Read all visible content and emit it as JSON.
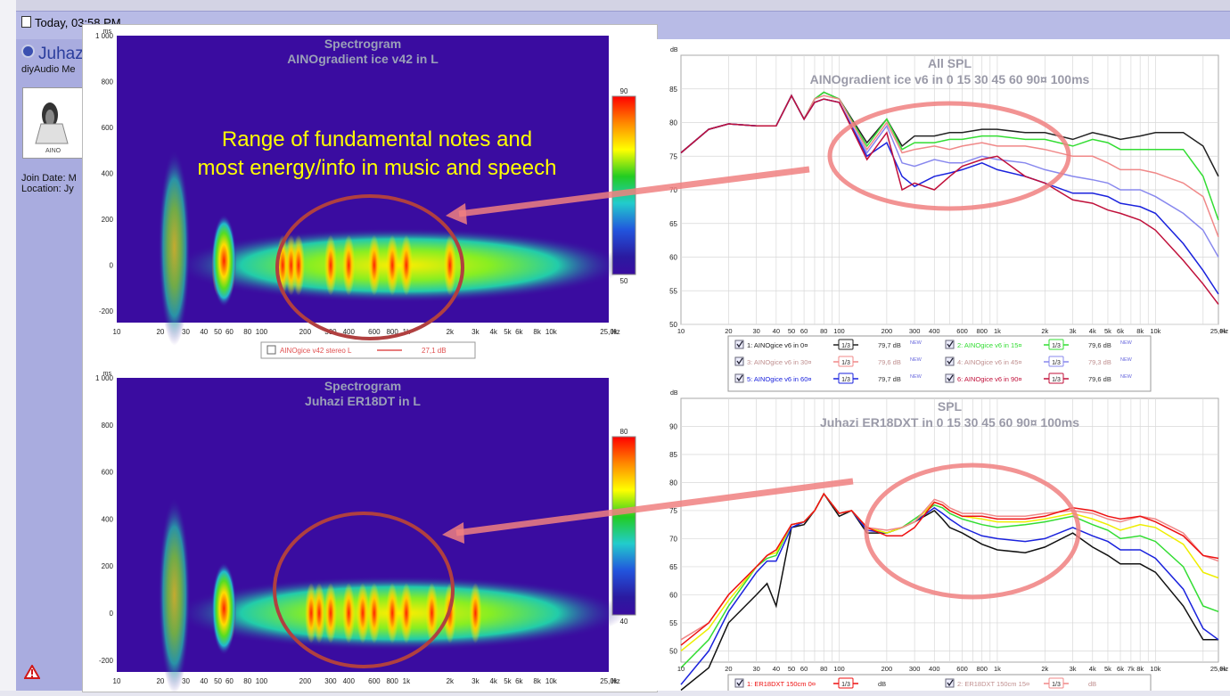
{
  "forum": {
    "post_date": "Today, 03:58 PM",
    "username": "Juhaz",
    "user_title": "diyAudio Me",
    "join_date": "Join Date: M",
    "location": "Location: Jy",
    "avatar_text": "AINO"
  },
  "colors": {
    "spectro_bg": "#3a0ca0",
    "annotation_text": "#ffff00",
    "annotation_arrow": "#f08080",
    "circle": "#b04040"
  },
  "annotation": {
    "line1": "Range of fundamental notes and",
    "line2": "most energy/info in music and speech"
  },
  "chart_data": [
    {
      "type": "heatmap",
      "title": "Spectrogram",
      "subtitle": "AINOgradient ice v42 in L",
      "xlabel": "Hz",
      "ylabel": "ms",
      "x_scale": "log",
      "xlim": [
        10,
        25000
      ],
      "ylim": [
        -250,
        1000
      ],
      "x_ticks": [
        "10",
        "20",
        "30",
        "40",
        "50",
        "60",
        "80",
        "100",
        "200",
        "300",
        "400",
        "600",
        "800",
        "1k",
        "2k",
        "3k",
        "4k",
        "5k",
        "6k",
        "8k",
        "10k",
        "25,0k"
      ],
      "x_tick_values": [
        10,
        20,
        30,
        40,
        50,
        60,
        80,
        100,
        200,
        300,
        400,
        600,
        800,
        1000,
        2000,
        3000,
        4000,
        5000,
        6000,
        8000,
        10000,
        25000
      ],
      "y_ticks": [
        "1 000",
        "800",
        "600",
        "400",
        "200",
        "0",
        "-200"
      ],
      "y_tick_values": [
        1000,
        800,
        600,
        400,
        200,
        0,
        -200
      ],
      "colorbar": {
        "max": "90",
        "min": "50"
      },
      "hot_spots_hz": [
        50,
        60,
        140,
        160,
        180,
        300,
        400,
        600,
        800,
        1000,
        2000
      ],
      "legend": {
        "label": "AINOgice v42 stereo L",
        "value": "27,1 dB"
      }
    },
    {
      "type": "heatmap",
      "title": "Spectrogram",
      "subtitle": "Juhazi ER18DT in L",
      "xlabel": "Hz",
      "ylabel": "ms",
      "x_scale": "log",
      "xlim": [
        10,
        25000
      ],
      "ylim": [
        -250,
        1000
      ],
      "x_ticks": [
        "10",
        "20",
        "30",
        "40",
        "50",
        "60",
        "80",
        "100",
        "200",
        "300",
        "400",
        "600",
        "800",
        "1k",
        "2k",
        "3k",
        "4k",
        "5k",
        "6k",
        "8k",
        "10k",
        "25,0k"
      ],
      "x_tick_values": [
        10,
        20,
        30,
        40,
        50,
        60,
        80,
        100,
        200,
        300,
        400,
        600,
        800,
        1000,
        2000,
        3000,
        4000,
        5000,
        6000,
        8000,
        10000,
        25000
      ],
      "y_ticks": [
        "1 000",
        "800",
        "600",
        "400",
        "200",
        "0",
        "-200"
      ],
      "y_tick_values": [
        1000,
        800,
        600,
        400,
        200,
        0,
        -200
      ],
      "colorbar": {
        "max": "80",
        "min": "40"
      },
      "hot_spots_hz": [
        55,
        60,
        220,
        250,
        300,
        400,
        500,
        600,
        800,
        1000,
        1500,
        2000,
        3000
      ]
    },
    {
      "type": "line",
      "title": "All SPL",
      "subtitle": "AINOgradient ice v6 in 0 15 30 45 60 90¤ 100ms",
      "ylabel": "dB",
      "xlabel": "Hz",
      "x_scale": "log",
      "xlim": [
        10,
        25000
      ],
      "ylim": [
        50,
        90
      ],
      "x_ticks": [
        "10",
        "20",
        "30",
        "40",
        "50",
        "60",
        "80",
        "100",
        "200",
        "300",
        "400",
        "600",
        "800",
        "1k",
        "2k",
        "3k",
        "4k",
        "5k",
        "6k",
        "8k",
        "10k",
        "25,0k"
      ],
      "x_tick_values": [
        10,
        20,
        30,
        40,
        50,
        60,
        80,
        100,
        200,
        300,
        400,
        600,
        800,
        1000,
        2000,
        3000,
        4000,
        5000,
        6000,
        8000,
        10000,
        25000
      ],
      "y_ticks": [
        "50",
        "55",
        "60",
        "65",
        "70",
        "75",
        "80",
        "85"
      ],
      "y_tick_values": [
        50,
        55,
        60,
        65,
        70,
        75,
        80,
        85
      ],
      "x": [
        10,
        15,
        20,
        30,
        40,
        50,
        60,
        70,
        80,
        100,
        150,
        200,
        250,
        300,
        400,
        500,
        600,
        800,
        1000,
        1500,
        2000,
        3000,
        4000,
        5000,
        6000,
        8000,
        10000,
        15000,
        20000,
        25000
      ],
      "series": [
        {
          "color": "#222222",
          "values": [
            75.5,
            79,
            79.8,
            79.5,
            79.5,
            84,
            80.5,
            83.5,
            84.5,
            83.5,
            77,
            80.5,
            76.5,
            78,
            78,
            78.5,
            78.5,
            79,
            79,
            78.5,
            78.5,
            77.5,
            78.5,
            78,
            77.5,
            78,
            78.5,
            78.5,
            76.5,
            72
          ]
        },
        {
          "color": "#33dd33",
          "values": [
            75.5,
            79,
            79.8,
            79.5,
            79.5,
            84,
            80.5,
            83.5,
            84.5,
            83.5,
            76.5,
            80.5,
            76,
            77,
            77,
            77.5,
            77.5,
            78,
            78,
            77.5,
            77.5,
            76.5,
            77.5,
            77,
            76,
            76,
            76,
            76,
            72,
            65.5
          ]
        },
        {
          "color": "#f08888",
          "values": [
            75.5,
            79,
            79.8,
            79.5,
            79.5,
            84,
            80.5,
            83.5,
            84,
            83.5,
            76,
            80,
            75.5,
            76,
            76.5,
            76,
            76.5,
            77,
            76.5,
            76.5,
            76,
            75,
            75,
            74,
            73,
            73,
            72.5,
            71,
            69,
            63
          ]
        },
        {
          "color": "#8888ee",
          "values": [
            75.5,
            79,
            79.8,
            79.5,
            79.5,
            84,
            80.5,
            83,
            83.5,
            83,
            75.5,
            79.5,
            74,
            73.5,
            74.5,
            74,
            74,
            75,
            74.5,
            74,
            73,
            72,
            71.5,
            71,
            70,
            70,
            69,
            66.5,
            64,
            60
          ]
        },
        {
          "color": "#1a22dd",
          "values": [
            75.5,
            79,
            79.8,
            79.5,
            79.5,
            84,
            80.5,
            83,
            83.5,
            83,
            75,
            77,
            72,
            70.5,
            72,
            72.5,
            73,
            74,
            73,
            72,
            71,
            69.5,
            69.5,
            69,
            68,
            67.5,
            66.5,
            62,
            58,
            54.5
          ]
        },
        {
          "color": "#c0103a",
          "values": [
            75.5,
            79,
            79.8,
            79.5,
            79.5,
            84,
            80.5,
            83,
            83.5,
            83,
            74.5,
            78.5,
            70,
            71,
            70,
            72,
            73.5,
            74.5,
            75,
            72,
            71,
            68.5,
            68,
            67,
            66.5,
            65.5,
            64,
            59.5,
            56,
            53
          ]
        }
      ],
      "legend": [
        {
          "label": "1: AINOgice v6 in 0¤",
          "box": "1/3",
          "value": "79,7 dB",
          "badge": "NEW",
          "color": "#222222"
        },
        {
          "label": "2: AINOgice v6 in 15¤",
          "box": "1/3",
          "value": "79,6 dB",
          "badge": "NEW",
          "color": "#33dd33"
        },
        {
          "label": "3: AINOgice v6 in 30¤",
          "box": "1/3",
          "value": "79,6 dB",
          "badge": "NEW",
          "color": "#f08888"
        },
        {
          "label": "4: AINOgice v6 in 45¤",
          "box": "1/3",
          "value": "79,3 dB",
          "badge": "NEW",
          "color": "#8888ee"
        },
        {
          "label": "5: AINOgice v6 in 60¤",
          "box": "1/3",
          "value": "79,7 dB",
          "badge": "NEW",
          "color": "#1a22dd"
        },
        {
          "label": "6: AINOgice v6 in 90¤",
          "box": "1/3",
          "value": "79,6 dB",
          "badge": "NEW",
          "color": "#c0103a"
        }
      ]
    },
    {
      "type": "line",
      "title": "SPL",
      "subtitle": "Juhazi ER18DXT in 0 15 30 45 60 90¤ 100ms",
      "ylabel": "dB",
      "xlabel": "Hz",
      "x_scale": "log",
      "xlim": [
        10,
        25000
      ],
      "ylim": [
        48,
        95
      ],
      "x_ticks": [
        "10",
        "20",
        "30",
        "40",
        "50",
        "60",
        "80",
        "100",
        "200",
        "300",
        "400",
        "600",
        "800",
        "1k",
        "2k",
        "3k",
        "4k",
        "5k",
        "6k",
        "7k",
        "8k",
        "10k",
        "25,0k"
      ],
      "x_tick_values": [
        10,
        20,
        30,
        40,
        50,
        60,
        80,
        100,
        200,
        300,
        400,
        600,
        800,
        1000,
        2000,
        3000,
        4000,
        5000,
        6000,
        7000,
        8000,
        10000,
        25000
      ],
      "y_ticks": [
        "50",
        "55",
        "60",
        "65",
        "70",
        "75",
        "80",
        "85",
        "90"
      ],
      "y_tick_values": [
        50,
        55,
        60,
        65,
        70,
        75,
        80,
        85,
        90
      ],
      "x": [
        10,
        15,
        20,
        30,
        35,
        40,
        50,
        60,
        70,
        80,
        100,
        120,
        150,
        200,
        250,
        300,
        400,
        450,
        500,
        600,
        800,
        1000,
        1500,
        2000,
        3000,
        4000,
        5000,
        6000,
        8000,
        10000,
        15000,
        20000,
        25000
      ],
      "series": [
        {
          "color": "#111111",
          "values": [
            40,
            47,
            55,
            60,
            62,
            58,
            72,
            72.5,
            75,
            78,
            74,
            75,
            71,
            71,
            72,
            73,
            75,
            73.5,
            72,
            71,
            69,
            68,
            67.5,
            68.5,
            71,
            68.5,
            67,
            65.5,
            65.5,
            64,
            58,
            52,
            52
          ]
        },
        {
          "color": "#1a22dd",
          "values": [
            44,
            50,
            57,
            64,
            66,
            66,
            72,
            73,
            75,
            78,
            74.5,
            75,
            71.5,
            71,
            72,
            73,
            75.5,
            74.5,
            73.5,
            72,
            70.5,
            70,
            69.5,
            70,
            72,
            70.5,
            69.5,
            68,
            68,
            66.5,
            61,
            54,
            52
          ]
        },
        {
          "color": "#33dd33",
          "values": [
            47,
            52,
            58,
            65,
            66.5,
            67,
            72.5,
            73,
            75,
            78,
            74.5,
            75,
            72,
            71,
            72,
            73.5,
            76,
            75.5,
            74.5,
            73.5,
            72.5,
            72,
            72.5,
            73,
            74,
            72.5,
            71.5,
            70,
            70.5,
            69.5,
            65,
            58,
            57
          ]
        },
        {
          "color": "#eeee00",
          "values": [
            50,
            54,
            59,
            65,
            67,
            67.5,
            72.5,
            73,
            75,
            78,
            74.5,
            75,
            72,
            71,
            72,
            73,
            76.5,
            76,
            75,
            74,
            73.5,
            73,
            73,
            73.5,
            74.5,
            73.5,
            72.5,
            71.5,
            72.5,
            72,
            69,
            64,
            63
          ]
        },
        {
          "color": "#f08888",
          "values": [
            52,
            55,
            60,
            65,
            67,
            68,
            72.5,
            73,
            75,
            78,
            74.5,
            75,
            72,
            71.5,
            72,
            73,
            77,
            76.5,
            75.5,
            74.5,
            74.5,
            74,
            74,
            74.5,
            75,
            74.5,
            73.5,
            73,
            74,
            73.5,
            71,
            67,
            66
          ]
        },
        {
          "color": "#ee1111",
          "values": [
            51,
            55,
            60,
            65,
            67,
            68,
            72.5,
            73,
            75,
            78,
            74.5,
            75,
            72,
            70.5,
            70.5,
            72,
            76.5,
            76,
            75,
            74,
            74,
            73.5,
            73.5,
            74,
            75.5,
            75,
            74,
            73.5,
            74,
            73,
            70.5,
            67,
            66.5
          ]
        }
      ],
      "legend": [
        {
          "label": "1: ER18DXT 150cm 0¤",
          "box": "1/3",
          "value": "dB",
          "color": "#ee1111"
        },
        {
          "label": "2: ER18DXT 150cm 15¤",
          "box": "1/3",
          "value": "dB",
          "color": "#f08888"
        }
      ]
    }
  ]
}
